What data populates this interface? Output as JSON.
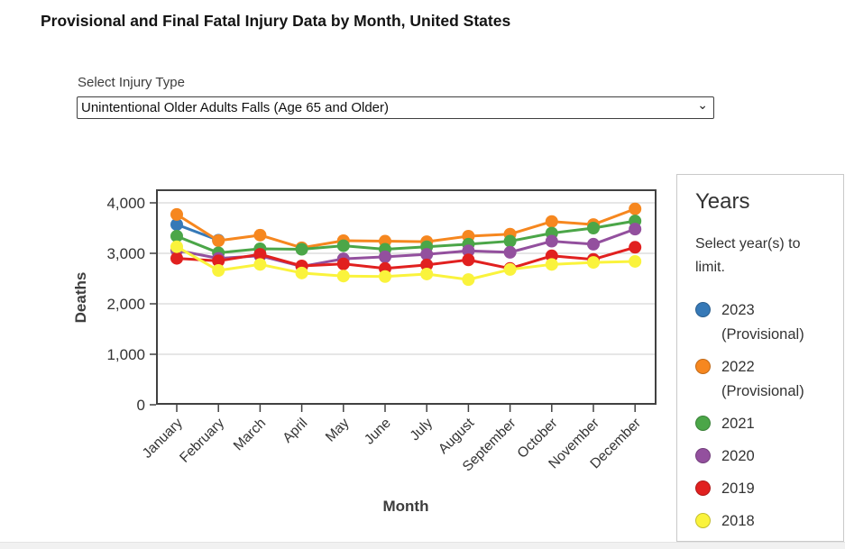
{
  "page": {
    "title": "Provisional and Final Fatal Injury Data by Month, United States"
  },
  "injury_type": {
    "label": "Select Injury Type",
    "selected": "Unintentional Older Adults Falls (Age 65 and Older)",
    "chevron_icon": "⌄"
  },
  "years_panel": {
    "heading": "Years",
    "instruction": "Select year(s) to limit.",
    "items": [
      {
        "label": "2023 (Provisional)",
        "color": "#3679B7"
      },
      {
        "label": "2022 (Provisional)",
        "color": "#F6871F"
      },
      {
        "label": "2021",
        "color": "#4BA648"
      },
      {
        "label": "2020",
        "color": "#93509E"
      },
      {
        "label": "2019",
        "color": "#E1201F"
      },
      {
        "label": "2018",
        "color": "#FAF33C"
      }
    ]
  },
  "chart_data": {
    "type": "line",
    "title": "",
    "xlabel": "Month",
    "ylabel": "Deaths",
    "categories": [
      "January",
      "February",
      "March",
      "April",
      "May",
      "June",
      "July",
      "August",
      "September",
      "October",
      "November",
      "December"
    ],
    "ylim": [
      0,
      4270
    ],
    "ytick_values": [
      0,
      1000,
      2000,
      3000,
      4000
    ],
    "ytick_labels": [
      "0",
      "1,000",
      "2,000",
      "3,000",
      "4,000"
    ],
    "grid": true,
    "legend_position": "right-panel",
    "series": [
      {
        "name": "2023 (Provisional)",
        "color": "#3679B7",
        "values": [
          3570,
          3260,
          null,
          null,
          null,
          null,
          null,
          null,
          null,
          null,
          null,
          null
        ]
      },
      {
        "name": "2022 (Provisional)",
        "color": "#F6871F",
        "values": [
          3770,
          3250,
          3360,
          3110,
          3250,
          3240,
          3230,
          3340,
          3380,
          3630,
          3570,
          3880
        ]
      },
      {
        "name": "2021",
        "color": "#4BA648",
        "values": [
          3340,
          3010,
          3090,
          3080,
          3150,
          3080,
          3130,
          3180,
          3240,
          3400,
          3500,
          3640
        ]
      },
      {
        "name": "2020",
        "color": "#93509E",
        "values": [
          3060,
          2900,
          2950,
          2740,
          2890,
          2930,
          2980,
          3050,
          3020,
          3240,
          3180,
          3480
        ]
      },
      {
        "name": "2019",
        "color": "#E1201F",
        "values": [
          2900,
          2850,
          2980,
          2750,
          2790,
          2700,
          2770,
          2870,
          2700,
          2950,
          2880,
          3120
        ]
      },
      {
        "name": "2018",
        "color": "#FAF33C",
        "values": [
          3130,
          2660,
          2780,
          2610,
          2550,
          2540,
          2590,
          2480,
          2680,
          2780,
          2820,
          2840
        ]
      }
    ]
  }
}
